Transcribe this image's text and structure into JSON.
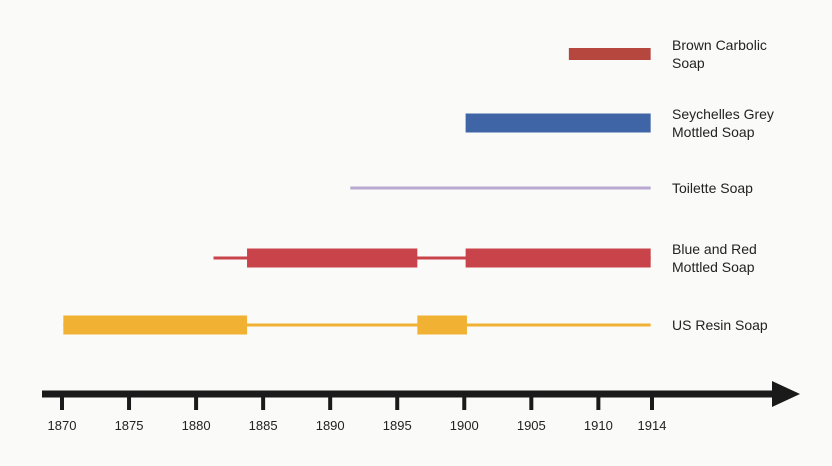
{
  "chart_data": {
    "type": "timeline",
    "title": "",
    "xlabel": "",
    "ylabel": "",
    "xlim": [
      1870,
      1914
    ],
    "x_ticks": [
      1870,
      1875,
      1880,
      1885,
      1890,
      1895,
      1900,
      1905,
      1910,
      1914
    ],
    "grid": false,
    "legend": "none",
    "series": [
      {
        "name_lines": [
          "Brown Carbolic",
          "Soap"
        ],
        "color": "#b5473f",
        "thin": [],
        "thick": [
          [
            1907.8,
            1913.9
          ]
        ],
        "thick_weight": "medium"
      },
      {
        "name_lines": [
          "Seychelles Grey",
          "Mottled Soap"
        ],
        "color": "#3f65a6",
        "thin": [],
        "thick": [
          [
            1900.1,
            1913.9
          ]
        ],
        "thick_weight": "heavy"
      },
      {
        "name_lines": [
          "Toilette Soap"
        ],
        "color": "#b9a8d1",
        "thin": [
          [
            1891.5,
            1913.9
          ]
        ],
        "thick": []
      },
      {
        "name_lines": [
          "Blue and Red",
          "Mottled Soap"
        ],
        "color": "#c9434a",
        "thin": [
          [
            1881.3,
            1913.9
          ]
        ],
        "thick": [
          [
            1883.8,
            1896.5
          ],
          [
            1900.1,
            1913.9
          ]
        ],
        "thick_weight": "heavy"
      },
      {
        "name_lines": [
          "US Resin Soap"
        ],
        "color": "#f1b233",
        "thin": [
          [
            1870.1,
            1913.9
          ]
        ],
        "thick": [
          [
            1870.1,
            1883.8
          ],
          [
            1896.5,
            1900.2
          ]
        ],
        "thick_weight": "heavy"
      }
    ]
  }
}
